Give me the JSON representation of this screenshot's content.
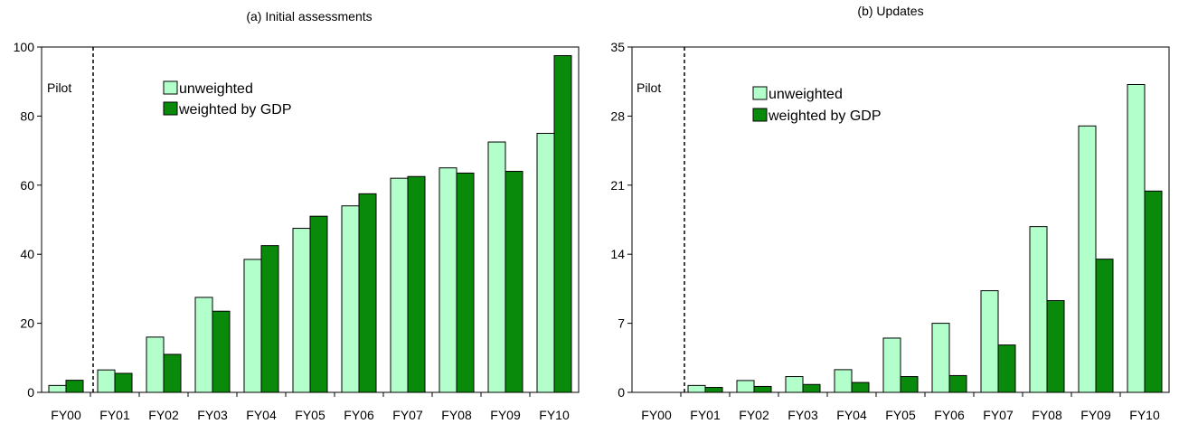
{
  "chart_data": [
    {
      "type": "bar",
      "title": "(a) Initial assessments",
      "categories": [
        "FY00",
        "FY01",
        "FY02",
        "FY03",
        "FY04",
        "FY05",
        "FY06",
        "FY07",
        "FY08",
        "FY09",
        "FY10"
      ],
      "series": [
        {
          "name": "unweighted",
          "color": "#b3ffcc",
          "values": [
            2,
            6.5,
            16,
            27.5,
            38.5,
            47.5,
            54,
            62,
            65,
            72.5,
            75
          ]
        },
        {
          "name": "weighted by GDP",
          "color": "#0a8a0a",
          "values": [
            3.5,
            5.5,
            11,
            23.5,
            42.5,
            51,
            57.5,
            62.5,
            63.5,
            64,
            97.5
          ]
        }
      ],
      "ylim": [
        0,
        100
      ],
      "yticks": [
        "0",
        "20",
        "40",
        "60",
        "80",
        "100"
      ],
      "annotation": "Pilot",
      "grid": false,
      "legend_position": "top-center"
    },
    {
      "type": "bar",
      "title": "(b) Updates",
      "categories": [
        "FY00",
        "FY01",
        "FY02",
        "FY03",
        "FY04",
        "FY05",
        "FY06",
        "FY07",
        "FY08",
        "FY09",
        "FY10"
      ],
      "series": [
        {
          "name": "unweighted",
          "color": "#b3ffcc",
          "values": [
            0,
            0.7,
            1.2,
            1.6,
            2.3,
            5.5,
            7,
            10.3,
            16.8,
            27,
            31.2
          ]
        },
        {
          "name": "weighted by GDP",
          "color": "#0a8a0a",
          "values": [
            0,
            0.5,
            0.6,
            0.8,
            1,
            1.6,
            1.7,
            4.8,
            9.3,
            13.5,
            20.4
          ]
        }
      ],
      "ylim": [
        0,
        35
      ],
      "yticks": [
        "0",
        "7",
        "14",
        "21",
        "28",
        "35"
      ],
      "annotation": "Pilot",
      "grid": false,
      "legend_position": "top-center"
    }
  ]
}
